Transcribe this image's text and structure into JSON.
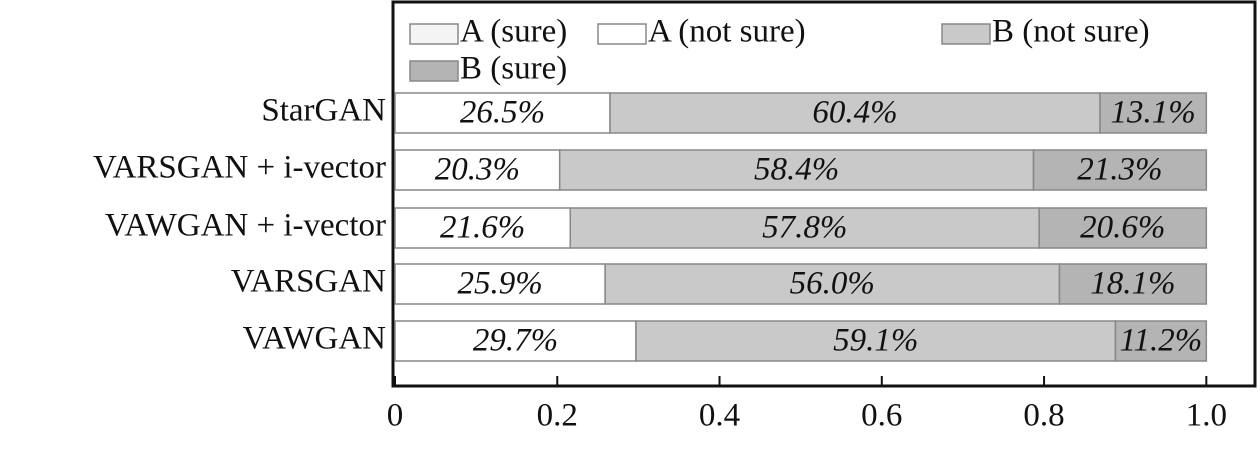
{
  "chart_data": {
    "type": "stacked-barh",
    "categories": [
      "StarGAN",
      "VARSGAN + i-vector",
      "VAWGAN + i-vector",
      "VARSGAN",
      "VAWGAN"
    ],
    "series": [
      {
        "name": "A (sure)",
        "color": "#f4f4f4",
        "values": [
          0,
          0,
          0,
          0,
          0
        ]
      },
      {
        "name": "A (not sure)",
        "color": "#ffffff",
        "values": [
          0.265,
          0.203,
          0.216,
          0.259,
          0.297
        ],
        "value_labels": [
          "26.5%",
          "20.3%",
          "21.6%",
          "25.9%",
          "29.7%"
        ]
      },
      {
        "name": "B (not sure)",
        "color": "#c9c9c9",
        "values": [
          0.604,
          0.584,
          0.578,
          0.56,
          0.591
        ],
        "value_labels": [
          "60.4%",
          "58.4%",
          "57.8%",
          "56.0%",
          "59.1%"
        ]
      },
      {
        "name": "B (sure)",
        "color": "#b4b4b4",
        "values": [
          0.131,
          0.213,
          0.206,
          0.181,
          0.112
        ],
        "value_labels": [
          "13.1%",
          "21.3%",
          "20.6%",
          "18.1%",
          "11.2%"
        ]
      }
    ],
    "xlim": [
      0,
      1.06
    ],
    "xticks": [
      0,
      0.2,
      0.4,
      0.6,
      0.8,
      {
        "value": 1,
        "label": "1.0"
      }
    ]
  }
}
